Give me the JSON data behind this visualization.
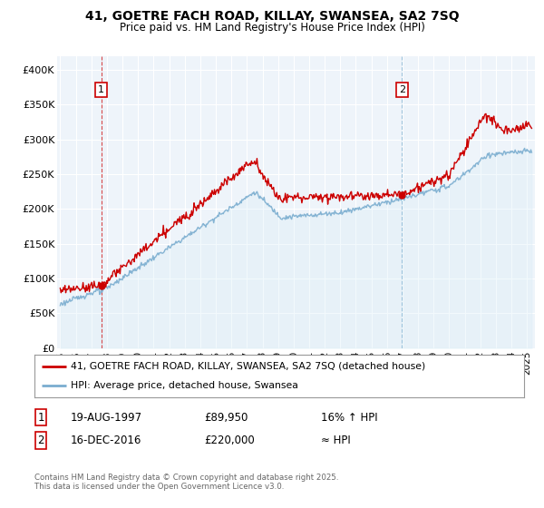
{
  "title_line1": "41, GOETRE FACH ROAD, KILLAY, SWANSEA, SA2 7SQ",
  "title_line2": "Price paid vs. HM Land Registry's House Price Index (HPI)",
  "ylim": [
    0,
    420000
  ],
  "yticks": [
    0,
    50000,
    100000,
    150000,
    200000,
    250000,
    300000,
    350000,
    400000
  ],
  "ytick_labels": [
    "£0",
    "£50K",
    "£100K",
    "£150K",
    "£200K",
    "£250K",
    "£300K",
    "£350K",
    "£400K"
  ],
  "xlim_start": 1994.8,
  "xlim_end": 2025.5,
  "xtick_years": [
    1995,
    1996,
    1997,
    1998,
    1999,
    2000,
    2001,
    2002,
    2003,
    2004,
    2005,
    2006,
    2007,
    2008,
    2009,
    2010,
    2011,
    2012,
    2013,
    2014,
    2015,
    2016,
    2017,
    2018,
    2019,
    2020,
    2021,
    2022,
    2023,
    2024,
    2025
  ],
  "sale1_x": 1997.63,
  "sale1_y": 89950,
  "sale2_x": 2016.96,
  "sale2_y": 220000,
  "sale1_label": "1",
  "sale2_label": "2",
  "sale1_date": "19-AUG-1997",
  "sale1_price": "£89,950",
  "sale1_hpi": "16% ↑ HPI",
  "sale2_date": "16-DEC-2016",
  "sale2_price": "£220,000",
  "sale2_hpi": "≈ HPI",
  "legend_line1": "41, GOETRE FACH ROAD, KILLAY, SWANSEA, SA2 7SQ (detached house)",
  "legend_line2": "HPI: Average price, detached house, Swansea",
  "footer": "Contains HM Land Registry data © Crown copyright and database right 2025.\nThis data is licensed under the Open Government Licence v3.0.",
  "line_color_red": "#cc0000",
  "line_color_blue": "#7aadcf",
  "fill_color_blue": "#dceef7",
  "vline1_color": "#cc0000",
  "vline2_color": "#7aadcf",
  "background_color": "#ffffff",
  "grid_color": "#ccddee",
  "label_box_color": "#cc0000"
}
